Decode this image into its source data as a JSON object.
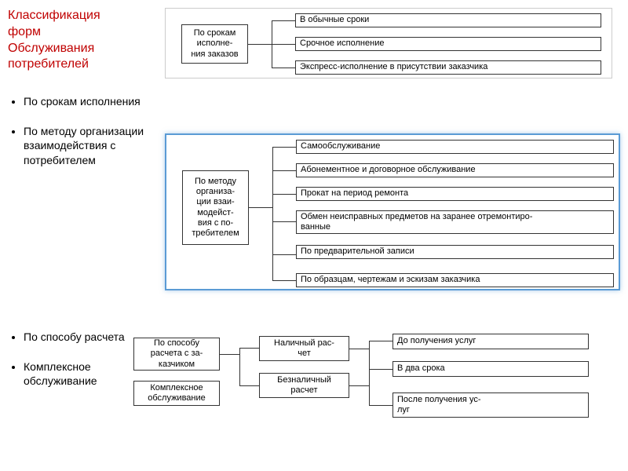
{
  "title": {
    "line1": "Классификация",
    "line2": " форм",
    "line3": "Обслуживания",
    "line4": " потребителей",
    "color_red": "#c00000",
    "fontsize": 16
  },
  "bullets_top": [
    "По срокам исполнения",
    "По методу организации взаимодействия с потребителем"
  ],
  "bullets_bottom": [
    "По способу расчета",
    "Комплексное обслуживание"
  ],
  "diagram1": {
    "type": "tree",
    "root": "По срокам исполне-\nния заказов",
    "children": [
      "В обычные сроки",
      "Срочное исполнение",
      "Экспресс-исполнение в присутствии заказчика"
    ],
    "border_color": "#333333",
    "text_color": "#000000",
    "fontsize": 11
  },
  "diagram2": {
    "type": "tree",
    "root": "По методу организа-\nции взаи-\nмодейст-\nвия с по-\nтребителем",
    "children": [
      "Самообслуживание",
      "Абонементное и договорное обслуживание",
      "Прокат на период ремонта",
      "Обмен неисправных предметов на заранее отремонтиро-\nванные",
      "По предварительной записи",
      "По образцам, чертежам и эскизам заказчика"
    ],
    "frame_color": "#5b9bd5",
    "border_color": "#333333",
    "fontsize": 11
  },
  "diagram3": {
    "type": "tree",
    "left1": "По способу расчета с за-\nказчиком",
    "left2": "Комплексное обслуживание",
    "mid1": "Наличный рас-\nчет",
    "mid2": "Безналичный расчет",
    "right": [
      "До получения услуг",
      "В два срока",
      "После получения ус-\nлуг"
    ],
    "border_color": "#333333",
    "fontsize": 11
  },
  "colors": {
    "background": "#ffffff",
    "box_border": "#333333",
    "line": "#333333",
    "text": "#000000",
    "red": "#c00000",
    "blue_frame": "#5b9bd5"
  }
}
